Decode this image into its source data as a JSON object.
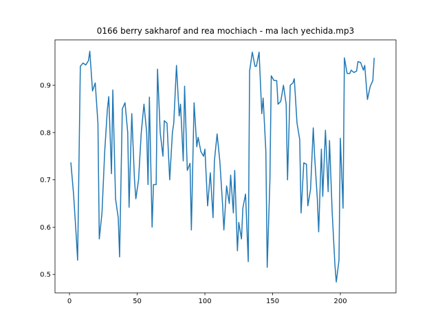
{
  "chart_data": {
    "type": "line",
    "title": "0166 berry sakharof and rea mochiach - ma lach yechida.mp3",
    "x": [
      1,
      3,
      5,
      6,
      8,
      10,
      12,
      14,
      15,
      17,
      19,
      21,
      22,
      24,
      26,
      28,
      29,
      31,
      32,
      34,
      36,
      37,
      39,
      41,
      43,
      44,
      46,
      48,
      49,
      51,
      53,
      55,
      57,
      58,
      59,
      61,
      62,
      64,
      65,
      67,
      69,
      70,
      72,
      74,
      76,
      77,
      79,
      81,
      82,
      84,
      85,
      87,
      89,
      90,
      92,
      94,
      95,
      97,
      99,
      100,
      102,
      104,
      106,
      107,
      109,
      111,
      113,
      114,
      116,
      118,
      119,
      121,
      122,
      124,
      125,
      127,
      128,
      130,
      132,
      133,
      135,
      137,
      138,
      140,
      142,
      143,
      145,
      146,
      148,
      149,
      151,
      153,
      154,
      156,
      158,
      160,
      161,
      163,
      165,
      166,
      168,
      170,
      171,
      173,
      175,
      176,
      178,
      180,
      181,
      183,
      184,
      186,
      187,
      189,
      191,
      192,
      194,
      196,
      197,
      199,
      200,
      202,
      203,
      205,
      207,
      208,
      210,
      212,
      213,
      215,
      217,
      218,
      220,
      222,
      224,
      225
    ],
    "series": [
      {
        "color": "#1f77b4",
        "values": [
          0.737,
          0.67,
          0.58,
          0.53,
          0.94,
          0.947,
          0.943,
          0.952,
          0.972,
          0.888,
          0.905,
          0.82,
          0.575,
          0.63,
          0.76,
          0.85,
          0.876,
          0.713,
          0.89,
          0.66,
          0.62,
          0.537,
          0.85,
          0.863,
          0.8,
          0.642,
          0.84,
          0.7,
          0.66,
          0.7,
          0.8,
          0.86,
          0.8,
          0.69,
          0.875,
          0.6,
          0.69,
          0.69,
          0.934,
          0.8,
          0.75,
          0.825,
          0.82,
          0.7,
          0.8,
          0.82,
          0.942,
          0.835,
          0.86,
          0.74,
          0.898,
          0.72,
          0.735,
          0.594,
          0.863,
          0.77,
          0.79,
          0.76,
          0.75,
          0.765,
          0.645,
          0.715,
          0.62,
          0.74,
          0.797,
          0.74,
          0.65,
          0.594,
          0.687,
          0.65,
          0.71,
          0.63,
          0.72,
          0.55,
          0.61,
          0.575,
          0.64,
          0.67,
          0.527,
          0.93,
          0.97,
          0.94,
          0.94,
          0.97,
          0.84,
          0.873,
          0.76,
          0.515,
          0.7,
          0.92,
          0.91,
          0.91,
          0.86,
          0.866,
          0.9,
          0.86,
          0.7,
          0.9,
          0.905,
          0.914,
          0.82,
          0.785,
          0.63,
          0.736,
          0.733,
          0.645,
          0.68,
          0.81,
          0.75,
          0.66,
          0.59,
          0.765,
          0.665,
          0.805,
          0.675,
          0.783,
          0.63,
          0.52,
          0.484,
          0.53,
          0.788,
          0.64,
          0.958,
          0.925,
          0.925,
          0.932,
          0.927,
          0.93,
          0.95,
          0.948,
          0.932,
          0.942,
          0.87,
          0.897,
          0.91,
          0.958
        ]
      }
    ],
    "xlim": [
      -10.7,
      241.1
    ],
    "ylim": [
      0.461,
      0.996
    ],
    "xticks": [
      0,
      50,
      100,
      150,
      200
    ],
    "yticks": [
      0.5,
      0.6,
      0.7,
      0.8,
      0.9
    ]
  }
}
